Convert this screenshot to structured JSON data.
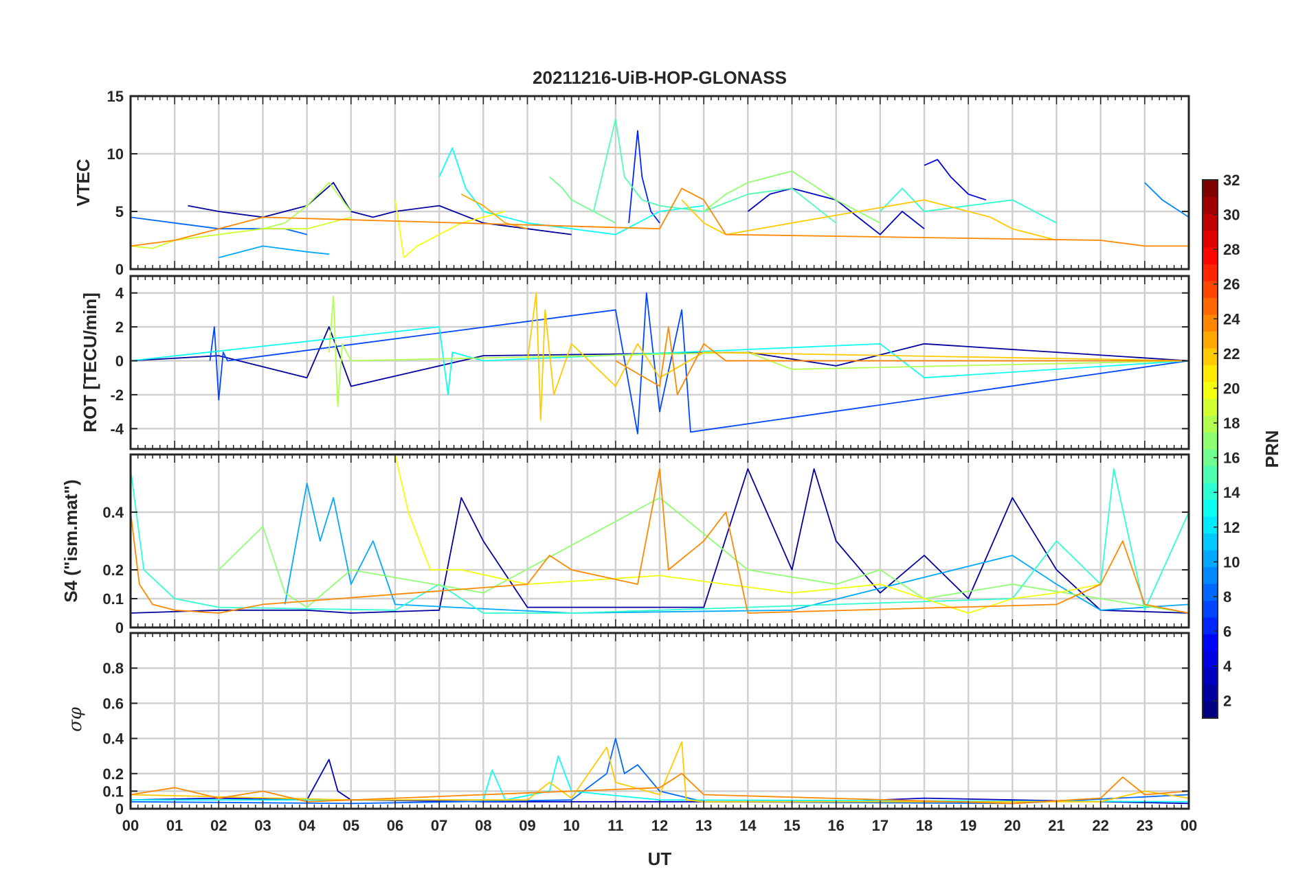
{
  "chart_data": {
    "type": "line",
    "title": "20211216-UiB-HOP-GLONASS",
    "xlabel": "UT",
    "x_ticks": [
      "00",
      "01",
      "02",
      "03",
      "04",
      "05",
      "06",
      "07",
      "08",
      "09",
      "10",
      "11",
      "12",
      "13",
      "14",
      "15",
      "16",
      "17",
      "18",
      "19",
      "20",
      "21",
      "22",
      "23",
      "00"
    ],
    "xlim": [
      0,
      24
    ],
    "grid": true,
    "colorbar": {
      "label": "PRN",
      "colormap": "jet",
      "range": [
        1,
        32
      ],
      "ticks": [
        "2",
        "4",
        "6",
        "8",
        "10",
        "12",
        "14",
        "16",
        "18",
        "20",
        "22",
        "24",
        "26",
        "28",
        "30",
        "32"
      ]
    },
    "panels": [
      {
        "id": "vtec",
        "ylabel": "VTEC",
        "ylim": [
          0,
          15
        ],
        "y_ticks": [
          {
            "v": 0,
            "t": "0"
          },
          {
            "v": 5,
            "t": "5"
          },
          {
            "v": 10,
            "t": "10"
          },
          {
            "v": 15,
            "t": "15"
          }
        ],
        "series": [
          {
            "prn": 2,
            "x": [
              1.3,
              2,
              3,
              4,
              4.6,
              5,
              5.5,
              6,
              7,
              8,
              9,
              10
            ],
            "y": [
              5.5,
              5,
              4.5,
              5.5,
              7.5,
              5,
              4.5,
              5,
              5.5,
              4,
              3.5,
              3
            ]
          },
          {
            "prn": 3,
            "x": [
              14,
              14.5,
              15,
              15.5,
              16,
              16.5,
              17,
              17.5,
              18
            ],
            "y": [
              5,
              6.5,
              7,
              6.5,
              6,
              4.5,
              3,
              5,
              3.5
            ]
          },
          {
            "prn": 4,
            "x": [
              18,
              18.3,
              18.6,
              19,
              19.4
            ],
            "y": [
              9,
              9.5,
              8,
              6.5,
              6
            ]
          },
          {
            "prn": 6,
            "x": [
              11.3,
              11.5,
              11.6,
              11.8,
              12
            ],
            "y": [
              4,
              12,
              8,
              5,
              4
            ]
          },
          {
            "prn": 8,
            "x": [
              0,
              1,
              2,
              3,
              3.5,
              4
            ],
            "y": [
              4.5,
              4,
              3.5,
              3.5,
              3.5,
              3
            ]
          },
          {
            "prn": 9,
            "x": [
              23,
              23.4,
              23.8,
              24
            ],
            "y": [
              7.5,
              6,
              5,
              4.5
            ]
          },
          {
            "prn": 10,
            "x": [
              2,
              3,
              4,
              4.5
            ],
            "y": [
              1,
              2,
              1.5,
              1.3
            ]
          },
          {
            "prn": 13,
            "x": [
              7,
              7.3,
              7.6,
              8,
              9,
              10,
              11,
              12,
              13
            ],
            "y": [
              8,
              10.5,
              7,
              5,
              4,
              3.5,
              3,
              5,
              5.5
            ]
          },
          {
            "prn": 14,
            "x": [
              17,
              17.5,
              18,
              19,
              20,
              21
            ],
            "y": [
              5,
              7,
              5,
              5.5,
              6,
              4
            ]
          },
          {
            "prn": 15,
            "x": [
              10.5,
              11,
              11.2,
              11.6,
              12,
              13,
              14,
              15,
              16
            ],
            "y": [
              5,
              13,
              8,
              6,
              5.5,
              5,
              6.5,
              7,
              4
            ]
          },
          {
            "prn": 16,
            "x": [
              9.5,
              9.8,
              10,
              10.5,
              11
            ],
            "y": [
              8,
              7,
              6,
              5,
              4
            ]
          },
          {
            "prn": 17,
            "x": [
              13,
              13.5,
              14,
              14.5,
              15,
              16,
              17
            ],
            "y": [
              5,
              6.5,
              7.5,
              8,
              8.5,
              6,
              4
            ]
          },
          {
            "prn": 18,
            "x": [
              1,
              2,
              3,
              3.5,
              4,
              4.5,
              5
            ],
            "y": [
              2.5,
              3,
              3.5,
              4,
              5.5,
              7.5,
              5
            ]
          },
          {
            "prn": 19,
            "x": [
              0,
              0.5,
              1,
              2,
              3,
              4,
              5
            ],
            "y": [
              2,
              1.8,
              2.5,
              3,
              3.5,
              3.5,
              4.5
            ]
          },
          {
            "prn": 20,
            "x": [
              6,
              6.2,
              6.5,
              7,
              7.5,
              8,
              8.5
            ],
            "y": [
              6,
              1,
              2,
              3,
              4,
              4.5,
              5
            ]
          },
          {
            "prn": 22,
            "x": [
              12.5,
              13,
              13.5,
              18,
              19,
              19.5,
              20,
              21
            ],
            "y": [
              6,
              4,
              3,
              6,
              5,
              4.5,
              3.5,
              2.5
            ]
          },
          {
            "prn": 23,
            "x": [
              7.5,
              8,
              8.5,
              9
            ],
            "y": [
              6.5,
              5.5,
              4,
              3.5
            ]
          },
          {
            "prn": 24,
            "x": [
              0,
              1,
              2,
              3,
              12,
              12.5,
              13,
              13.5,
              22,
              23,
              24
            ],
            "y": [
              2,
              2.5,
              3.5,
              4.5,
              3.5,
              7,
              6,
              3,
              2.5,
              2,
              2
            ]
          }
        ]
      },
      {
        "id": "rot",
        "ylabel": "ROT [TECU/min]",
        "ylim": [
          -5.2,
          5
        ],
        "y_ticks": [
          {
            "v": -4,
            "t": "-4"
          },
          {
            "v": -2,
            "t": "-2"
          },
          {
            "v": 0,
            "t": "0"
          },
          {
            "v": 2,
            "t": "2"
          },
          {
            "v": 4,
            "t": "4"
          }
        ],
        "series": [
          {
            "prn": 2,
            "x": [
              0,
              2,
              4,
              4.5,
              5,
              8,
              14,
              16,
              18,
              24
            ],
            "y": [
              0,
              0.3,
              -1,
              2,
              -1.5,
              0.3,
              0.5,
              -0.3,
              1,
              0
            ]
          },
          {
            "prn": 7,
            "x": [
              1.8,
              1.9,
              2,
              2.1,
              2.2,
              11,
              11.5,
              11.7,
              12,
              12.5,
              12.7,
              24
            ],
            "y": [
              0,
              2,
              -2.3,
              0.5,
              0,
              3,
              -4.3,
              4,
              -3,
              3,
              -4.2,
              0
            ]
          },
          {
            "prn": 13,
            "x": [
              0,
              7,
              7.2,
              7.3,
              8,
              17,
              18,
              24
            ],
            "y": [
              0,
              2,
              -2,
              0.5,
              0,
              1,
              -1,
              0
            ]
          },
          {
            "prn": 18,
            "x": [
              4.5,
              4.6,
              4.7,
              4.8,
              5,
              14,
              15,
              24
            ],
            "y": [
              0.5,
              3.8,
              -2.7,
              1,
              0,
              0.5,
              -0.5,
              0
            ]
          },
          {
            "prn": 22,
            "x": [
              9,
              9.2,
              9.3,
              9.4,
              9.6,
              10,
              11,
              11.5,
              12,
              13,
              24
            ],
            "y": [
              0,
              4,
              -3.5,
              3,
              -2,
              1,
              -1.5,
              1,
              -1,
              0.5,
              0
            ]
          },
          {
            "prn": 24,
            "x": [
              11,
              12,
              12.2,
              12.4,
              13,
              13.5,
              23,
              24
            ],
            "y": [
              0,
              -1.5,
              2,
              -2,
              1,
              0,
              0,
              0
            ]
          }
        ]
      },
      {
        "id": "s4",
        "ylabel": "S4 (\"ism.mat\")",
        "ylim": [
          0,
          0.6
        ],
        "y_ticks": [
          {
            "v": 0,
            "t": "0"
          },
          {
            "v": 0.1,
            "t": "0.1"
          },
          {
            "v": 0.2,
            "t": "0.2"
          },
          {
            "v": 0.4,
            "t": "0.4"
          }
        ],
        "series": [
          {
            "prn": 2,
            "x": [
              0,
              2,
              4,
              5,
              7,
              7.5,
              8,
              9,
              13,
              14,
              15,
              15.5,
              16,
              17,
              18,
              19,
              20,
              21,
              22,
              24
            ],
            "y": [
              0.05,
              0.06,
              0.06,
              0.05,
              0.06,
              0.45,
              0.3,
              0.07,
              0.07,
              0.55,
              0.2,
              0.55,
              0.3,
              0.12,
              0.25,
              0.1,
              0.45,
              0.2,
              0.06,
              0.05
            ]
          },
          {
            "prn": 10,
            "x": [
              3.5,
              4,
              4.3,
              4.6,
              5,
              5.5,
              6,
              10,
              15,
              20,
              21,
              22,
              24
            ],
            "y": [
              0.08,
              0.5,
              0.3,
              0.45,
              0.15,
              0.3,
              0.08,
              0.05,
              0.06,
              0.25,
              0.15,
              0.06,
              0.08
            ]
          },
          {
            "prn": 14,
            "x": [
              0,
              0.3,
              1,
              2,
              6,
              7,
              8,
              10,
              12,
              20,
              21,
              22,
              22.3,
              23,
              24
            ],
            "y": [
              0.55,
              0.2,
              0.1,
              0.07,
              0.06,
              0.15,
              0.05,
              0.05,
              0.06,
              0.1,
              0.3,
              0.15,
              0.55,
              0.06,
              0.4
            ]
          },
          {
            "prn": 17,
            "x": [
              2,
              3,
              3.5,
              4,
              5,
              8,
              12,
              14,
              16,
              17,
              18,
              20,
              22,
              24
            ],
            "y": [
              0.2,
              0.35,
              0.12,
              0.07,
              0.2,
              0.12,
              0.45,
              0.2,
              0.15,
              0.2,
              0.1,
              0.15,
              0.1,
              0.05
            ]
          },
          {
            "prn": 20,
            "x": [
              6,
              6.3,
              6.8,
              7.5,
              9,
              12,
              15,
              17,
              18,
              19,
              20,
              21,
              22
            ],
            "y": [
              0.6,
              0.4,
              0.2,
              0.2,
              0.15,
              0.18,
              0.12,
              0.15,
              0.1,
              0.05,
              0.1,
              0.12,
              0.15
            ]
          },
          {
            "prn": 24,
            "x": [
              0,
              0.2,
              0.5,
              1,
              2,
              3,
              9,
              9.5,
              10,
              11.5,
              12,
              12.2,
              13,
              13.5,
              14,
              21,
              22,
              22.5,
              23,
              24
            ],
            "y": [
              0.4,
              0.15,
              0.08,
              0.06,
              0.05,
              0.08,
              0.15,
              0.25,
              0.2,
              0.15,
              0.55,
              0.2,
              0.3,
              0.4,
              0.05,
              0.08,
              0.15,
              0.3,
              0.08,
              0.05
            ]
          }
        ]
      },
      {
        "id": "sigma",
        "ylabel": "σφ",
        "ylim": [
          0,
          1
        ],
        "y_ticks": [
          {
            "v": 0,
            "t": "0"
          },
          {
            "v": 0.1,
            "t": "0.1"
          },
          {
            "v": 0.2,
            "t": "0.2"
          },
          {
            "v": 0.4,
            "t": "0.4"
          },
          {
            "v": 0.6,
            "t": "0.6"
          },
          {
            "v": 0.8,
            "t": "0.8"
          }
        ],
        "series": [
          {
            "prn": 3,
            "x": [
              0,
              2,
              4,
              4.5,
              4.7,
              5,
              8,
              14,
              16,
              18,
              24
            ],
            "y": [
              0.05,
              0.06,
              0.05,
              0.28,
              0.1,
              0.05,
              0.04,
              0.04,
              0.04,
              0.06,
              0.03
            ]
          },
          {
            "prn": 8,
            "x": [
              0,
              5,
              10,
              10.8,
              11,
              11.2,
              11.5,
              12,
              13,
              20,
              24
            ],
            "y": [
              0.04,
              0.03,
              0.05,
              0.2,
              0.4,
              0.2,
              0.25,
              0.1,
              0.04,
              0.03,
              0.08
            ]
          },
          {
            "prn": 13,
            "x": [
              0,
              8,
              8.2,
              8.5,
              9.5,
              9.7,
              10,
              12,
              24
            ],
            "y": [
              0.05,
              0.05,
              0.22,
              0.05,
              0.1,
              0.3,
              0.1,
              0.05,
              0.04
            ]
          },
          {
            "prn": 22,
            "x": [
              0,
              5,
              9,
              9.5,
              10,
              10.8,
              11,
              12,
              12.5,
              12.6,
              13,
              22,
              23,
              24
            ],
            "y": [
              0.08,
              0.05,
              0.05,
              0.15,
              0.06,
              0.35,
              0.15,
              0.08,
              0.38,
              0.05,
              0.04,
              0.04,
              0.1,
              0.06
            ]
          },
          {
            "prn": 24,
            "x": [
              0,
              1,
              2,
              3,
              4,
              12,
              12.5,
              13,
              20,
              22,
              22.5,
              23,
              24
            ],
            "y": [
              0.08,
              0.12,
              0.06,
              0.1,
              0.04,
              0.12,
              0.2,
              0.08,
              0.03,
              0.06,
              0.18,
              0.08,
              0.1
            ]
          }
        ]
      }
    ]
  }
}
